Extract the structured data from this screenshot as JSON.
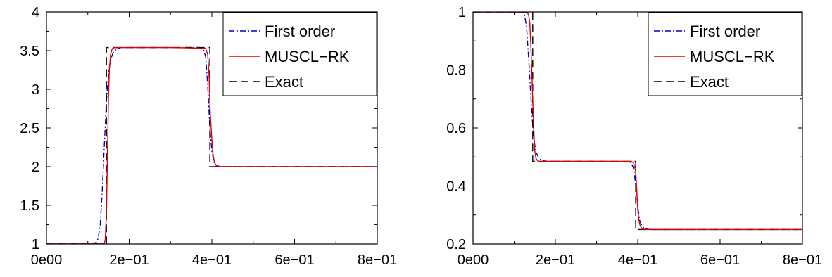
{
  "chart_data": [
    {
      "type": "line",
      "title": "",
      "xlabel": "",
      "ylabel": "",
      "xlim": [
        0,
        0.8
      ],
      "ylim": [
        1,
        4
      ],
      "xticks": [
        0,
        0.2,
        0.4,
        0.6,
        0.8
      ],
      "xtick_labels": [
        "0e00",
        "2e−01",
        "4e−01",
        "6e−01",
        "8e−01"
      ],
      "yticks": [
        1,
        1.5,
        2,
        2.5,
        3,
        3.5,
        4
      ],
      "ytick_labels": [
        "1",
        "1.5",
        "2",
        "2.5",
        "3",
        "3.5",
        "4"
      ],
      "legend_position": "top-right",
      "grid": false,
      "series": [
        {
          "name": "First order",
          "color": "#0000cc",
          "dash": "dashdot",
          "x": [
            0,
            0.11,
            0.12,
            0.125,
            0.13,
            0.135,
            0.14,
            0.145,
            0.15,
            0.155,
            0.16,
            0.165,
            0.17,
            0.175,
            0.18,
            0.19,
            0.2,
            0.3,
            0.37,
            0.38,
            0.385,
            0.39,
            0.395,
            0.4,
            0.405,
            0.41,
            0.415,
            0.42,
            0.43,
            0.5,
            0.6,
            0.7,
            0.8
          ],
          "y": [
            1,
            1,
            1.02,
            1.07,
            1.25,
            1.7,
            2.3,
            2.85,
            3.2,
            3.38,
            3.46,
            3.5,
            3.52,
            3.53,
            3.54,
            3.54,
            3.54,
            3.54,
            3.54,
            3.51,
            3.42,
            3.05,
            2.5,
            2.2,
            2.06,
            2.02,
            2.01,
            2.0,
            2.0,
            2.0,
            2.0,
            2.0,
            2.0
          ]
        },
        {
          "name": "MUSCL−RK",
          "color": "#dd0000",
          "dash": "solid",
          "x": [
            0,
            0.135,
            0.14,
            0.142,
            0.145,
            0.148,
            0.15,
            0.152,
            0.155,
            0.158,
            0.16,
            0.165,
            0.17,
            0.18,
            0.2,
            0.3,
            0.385,
            0.39,
            0.393,
            0.396,
            0.4,
            0.403,
            0.406,
            0.41,
            0.415,
            0.42,
            0.5,
            0.6,
            0.7,
            0.8
          ],
          "y": [
            1,
            1,
            1.01,
            1.05,
            1.4,
            2.3,
            2.9,
            3.25,
            3.45,
            3.51,
            3.53,
            3.54,
            3.54,
            3.54,
            3.54,
            3.54,
            3.53,
            3.45,
            3.2,
            2.7,
            2.35,
            2.15,
            2.06,
            2.02,
            2.0,
            2.0,
            2.0,
            2.0,
            2.0,
            2.0
          ]
        },
        {
          "name": "Exact",
          "color": "#000000",
          "dash": "dashed",
          "x": [
            0,
            0.145,
            0.145,
            0.395,
            0.395,
            0.8
          ],
          "y": [
            1,
            1,
            3.54,
            3.54,
            2.0,
            2.0
          ]
        }
      ]
    },
    {
      "type": "line",
      "title": "",
      "xlabel": "",
      "ylabel": "",
      "xlim": [
        0,
        0.8
      ],
      "ylim": [
        0.2,
        1
      ],
      "xticks": [
        0,
        0.2,
        0.4,
        0.6,
        0.8
      ],
      "xtick_labels": [
        "0e00",
        "2e−01",
        "4e−01",
        "6e−01",
        "8e−01"
      ],
      "yticks": [
        0.2,
        0.4,
        0.6,
        0.8,
        1
      ],
      "ytick_labels": [
        "0.2",
        "0.4",
        "0.6",
        "0.8",
        "1"
      ],
      "legend_position": "top-right",
      "grid": false,
      "series": [
        {
          "name": "First order",
          "color": "#0000cc",
          "dash": "dashdot",
          "x": [
            0,
            0.12,
            0.125,
            0.13,
            0.135,
            0.14,
            0.145,
            0.15,
            0.155,
            0.16,
            0.17,
            0.18,
            0.2,
            0.3,
            0.38,
            0.385,
            0.39,
            0.395,
            0.4,
            0.405,
            0.41,
            0.415,
            0.42,
            0.43,
            0.5,
            0.6,
            0.7,
            0.8
          ],
          "y": [
            1,
            1,
            0.99,
            0.95,
            0.84,
            0.72,
            0.61,
            0.54,
            0.51,
            0.495,
            0.487,
            0.485,
            0.485,
            0.485,
            0.484,
            0.478,
            0.46,
            0.405,
            0.33,
            0.28,
            0.262,
            0.255,
            0.252,
            0.25,
            0.25,
            0.25,
            0.25,
            0.25
          ]
        },
        {
          "name": "MUSCL−RK",
          "color": "#dd0000",
          "dash": "solid",
          "x": [
            0,
            0.13,
            0.135,
            0.138,
            0.14,
            0.142,
            0.145,
            0.148,
            0.15,
            0.153,
            0.156,
            0.16,
            0.17,
            0.2,
            0.3,
            0.385,
            0.39,
            0.395,
            0.398,
            0.4,
            0.403,
            0.406,
            0.41,
            0.415,
            0.42,
            0.5,
            0.6,
            0.7,
            0.8
          ],
          "y": [
            1,
            1,
            0.99,
            0.96,
            0.9,
            0.82,
            0.7,
            0.58,
            0.52,
            0.495,
            0.488,
            0.485,
            0.485,
            0.485,
            0.485,
            0.485,
            0.48,
            0.45,
            0.38,
            0.32,
            0.28,
            0.262,
            0.254,
            0.251,
            0.25,
            0.25,
            0.25,
            0.25,
            0.25
          ]
        },
        {
          "name": "Exact",
          "color": "#000000",
          "dash": "dashed",
          "x": [
            0,
            0.145,
            0.145,
            0.395,
            0.395,
            0.8
          ],
          "y": [
            1,
            1,
            0.485,
            0.485,
            0.25,
            0.25
          ]
        }
      ]
    }
  ]
}
